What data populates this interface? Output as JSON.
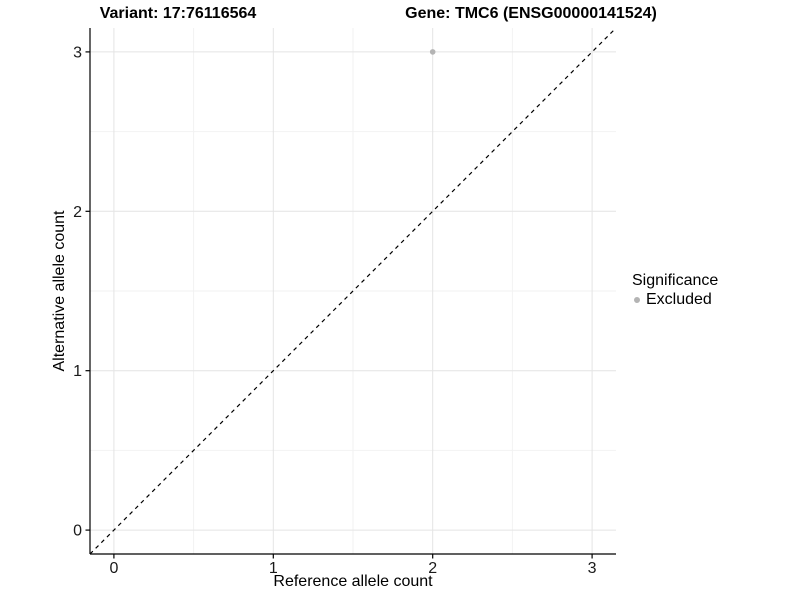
{
  "titles": {
    "variant": "Variant: 17:76116564",
    "gene": "Gene: TMC6 (ENSG00000141524)"
  },
  "legend": {
    "title": "Significance",
    "items": [
      {
        "label": "Excluded",
        "color": "#b4b4b4"
      }
    ]
  },
  "chart_data": {
    "type": "scatter",
    "title_left": "Variant: 17:76116564",
    "title_right": "Gene: TMC6 (ENSG00000141524)",
    "xlabel": "Reference allele count",
    "ylabel": "Alternative allele count",
    "x_ticks": [
      0,
      1,
      2,
      3
    ],
    "y_ticks": [
      0,
      1,
      2,
      3
    ],
    "xlim": [
      -0.15,
      3.15
    ],
    "ylim": [
      -0.15,
      3.15
    ],
    "grid": "major and minor, light gray, white panel background",
    "legend_position": "right-middle",
    "series": [
      {
        "name": "Excluded",
        "color": "#b4b4b4",
        "points": [
          {
            "x": 2,
            "y": 3
          }
        ]
      }
    ],
    "reference_line": {
      "kind": "identity y=x",
      "style": "dashed",
      "color": "#000000"
    },
    "colors": {
      "grid_major": "#e4e4e4",
      "grid_minor": "#f2f2f2",
      "axis_line": "#000000",
      "tick_text": "#1a1a1a",
      "point": "#b4b4b4",
      "background": "#ffffff"
    }
  }
}
